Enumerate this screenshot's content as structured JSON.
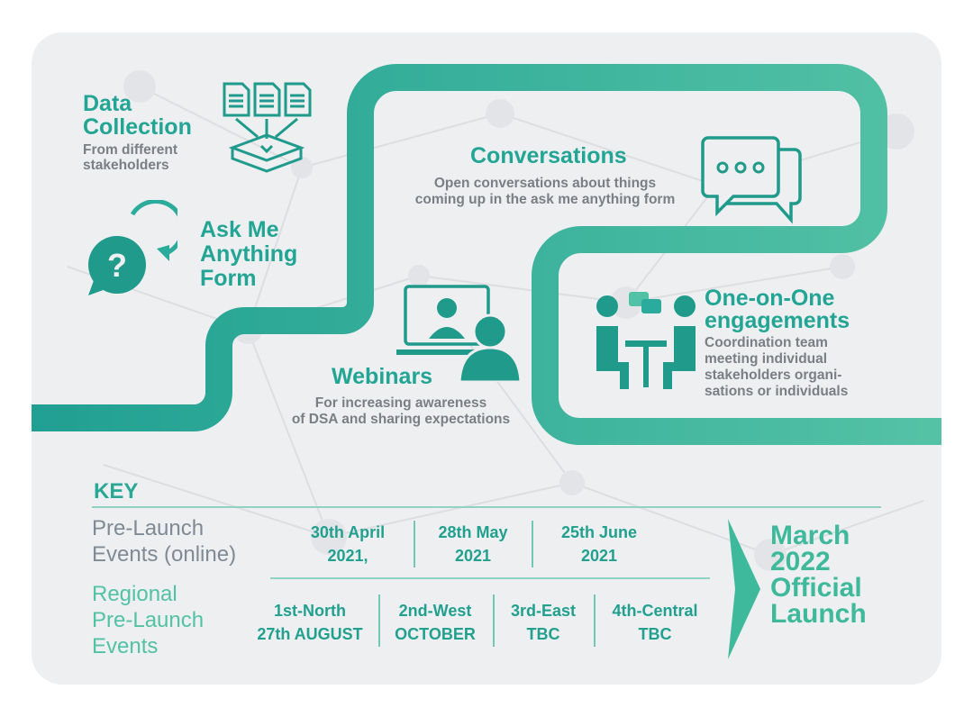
{
  "steps": {
    "data_collection": {
      "title_line1": "Data",
      "title_line2": "Collection",
      "sub_line1": "From different",
      "sub_line2": "stakeholders"
    },
    "ask_me": {
      "title_line1": "Ask Me",
      "title_line2": "Anything",
      "title_line3": "Form",
      "icon_glyph": "?"
    },
    "conversations": {
      "title": "Conversations",
      "sub_line1": "Open conversations about things",
      "sub_line2": "coming up in the ask me anything form"
    },
    "webinars": {
      "title": "Webinars",
      "sub_line1": "For increasing awareness",
      "sub_line2": "of DSA and sharing expectations"
    },
    "one_on_one": {
      "title_line1": "One-on-One",
      "title_line2": "engagements",
      "sub_line1": "Coordination team",
      "sub_line2": "meeting individual",
      "sub_line3": "stakeholders organi-",
      "sub_line4": "sations or individuals"
    }
  },
  "key": {
    "title": "KEY",
    "row1": {
      "label_line1": "Pre-Launch",
      "label_line2": "Events (online)",
      "cells": [
        {
          "line1": "30th April",
          "line2": "2021,"
        },
        {
          "line1": "28th May",
          "line2": "2021"
        },
        {
          "line1": "25th June",
          "line2": "2021"
        }
      ]
    },
    "row2": {
      "label_line1": "Regional",
      "label_line2": "Pre-Launch",
      "label_line3": "Events",
      "cells": [
        {
          "line1": "1st-North",
          "line2": "27th AUGUST"
        },
        {
          "line1": "2nd-West",
          "line2": "OCTOBER"
        },
        {
          "line1": "3rd-East",
          "line2": "TBC"
        },
        {
          "line1": "4th-Central",
          "line2": "TBC"
        }
      ]
    },
    "launch": {
      "line1": "March",
      "line2": "2022",
      "line3": "Official",
      "line4": "Launch"
    }
  },
  "colors": {
    "path": "#2bab9c",
    "path_light": "#52c2a6",
    "icon": "#1f9a8b",
    "card": "#eeeff1",
    "text_grey": "#7a7f85"
  }
}
